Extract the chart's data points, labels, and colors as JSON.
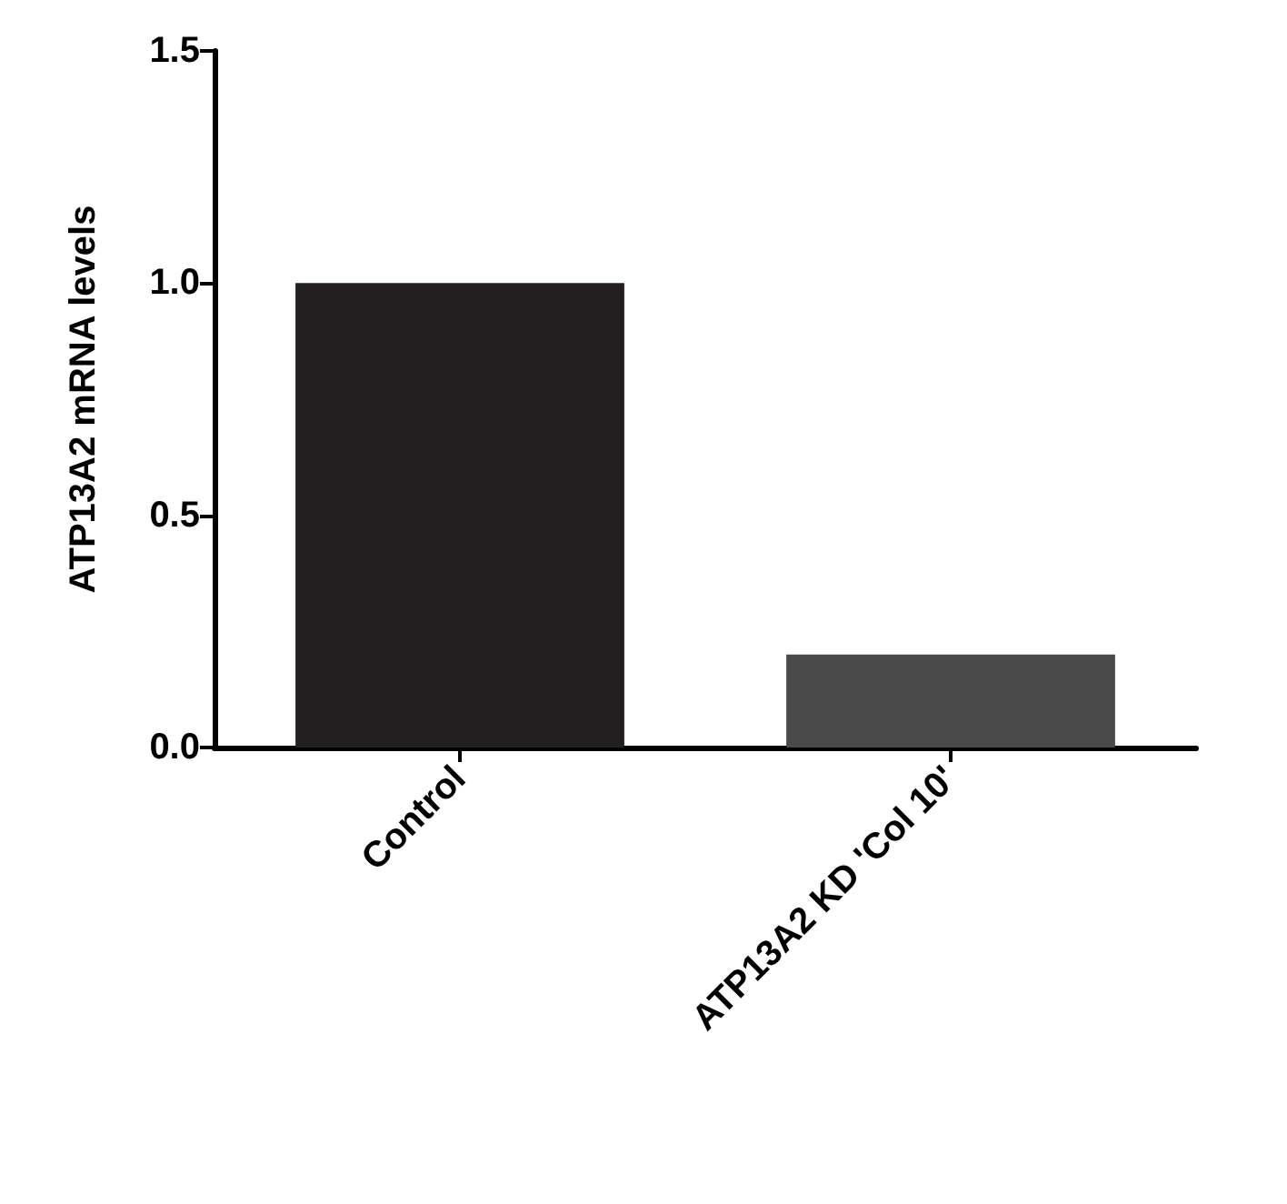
{
  "chart_data": {
    "type": "bar",
    "ylabel": "ATP13A2 mRNA levels",
    "categories": [
      "Control",
      "ATP13A2 KD 'Col 10'"
    ],
    "values": [
      1.0,
      0.2
    ],
    "colors": [
      "#231f20",
      "#4a4a4a"
    ],
    "ylim": [
      0,
      1.5
    ],
    "yticks": [
      {
        "value": 0,
        "label": "0.0"
      },
      {
        "value": 0.5,
        "label": "0.5"
      },
      {
        "value": 1,
        "label": "1.0"
      },
      {
        "value": 1.5,
        "label": "1.5"
      }
    ],
    "grid": false
  }
}
